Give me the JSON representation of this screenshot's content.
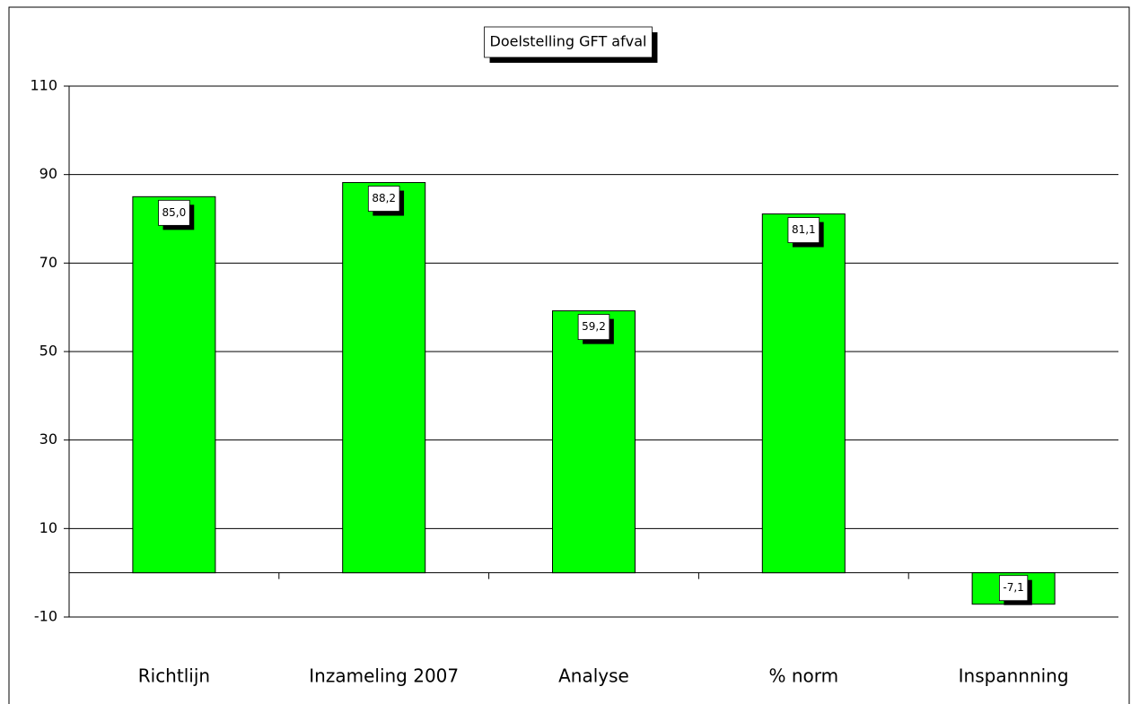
{
  "chart_data": {
    "type": "bar",
    "title": "Doelstelling GFT afval",
    "categories": [
      "Richtlijn",
      "Inzameling 2007",
      "Analyse",
      "% norm",
      "Inspannning"
    ],
    "values": [
      85.0,
      88.2,
      59.2,
      81.1,
      -7.1
    ],
    "value_labels": [
      "85,0",
      "88,2",
      "59,2",
      "81,1",
      "-7,1"
    ],
    "color": "#00ff00",
    "ylim": [
      -10,
      110
    ],
    "yticks": [
      -10,
      10,
      30,
      50,
      70,
      90,
      110
    ],
    "grid": true
  }
}
